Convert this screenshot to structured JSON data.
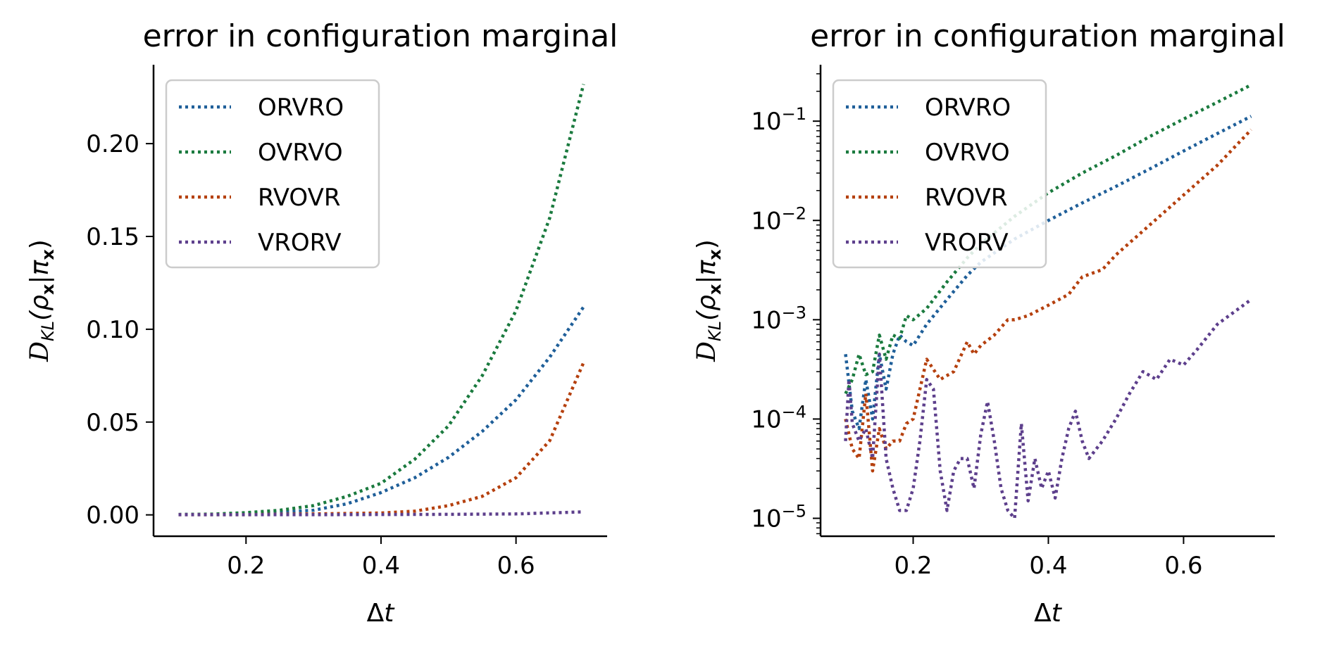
{
  "chart_data": [
    {
      "type": "line",
      "title": "error in configuration marginal",
      "xlabel": "Δt",
      "ylabel": "D_KL(ρ_x|π_x)",
      "xscale": "linear",
      "yscale": "linear",
      "xlim": [
        0.063,
        0.735
      ],
      "ylim": [
        -0.0115,
        0.2425
      ],
      "xticks": [
        0.2,
        0.4,
        0.6
      ],
      "xtick_labels": [
        "0.2",
        "0.4",
        "0.6"
      ],
      "yticks": [
        0.0,
        0.05,
        0.1,
        0.15,
        0.2
      ],
      "ytick_labels": [
        "0.00",
        "0.05",
        "0.10",
        "0.15",
        "0.20"
      ],
      "grid": false,
      "legend_position": "top-left",
      "line_style": "dotted",
      "series": [
        {
          "name": "ORVRO",
          "color": "#1f5f99",
          "x": [
            0.1,
            0.15,
            0.2,
            0.25,
            0.3,
            0.35,
            0.4,
            0.45,
            0.5,
            0.55,
            0.6,
            0.65,
            0.7
          ],
          "y": [
            0.0002,
            0.0003,
            0.0008,
            0.0015,
            0.0025,
            0.006,
            0.012,
            0.02,
            0.031,
            0.045,
            0.062,
            0.085,
            0.112
          ]
        },
        {
          "name": "OVRVO",
          "color": "#1a7a3e",
          "x": [
            0.1,
            0.15,
            0.2,
            0.25,
            0.3,
            0.35,
            0.4,
            0.45,
            0.5,
            0.55,
            0.6,
            0.65,
            0.7
          ],
          "y": [
            0.0002,
            0.0004,
            0.0012,
            0.0025,
            0.005,
            0.01,
            0.017,
            0.03,
            0.048,
            0.075,
            0.11,
            0.16,
            0.232
          ]
        },
        {
          "name": "RVOVR",
          "color": "#b5400e",
          "x": [
            0.1,
            0.2,
            0.3,
            0.4,
            0.45,
            0.5,
            0.55,
            0.6,
            0.65,
            0.7
          ],
          "y": [
            0.0001,
            0.0001,
            0.0005,
            0.001,
            0.002,
            0.005,
            0.01,
            0.02,
            0.04,
            0.082
          ]
        },
        {
          "name": "VRORV",
          "color": "#5d3f8c",
          "x": [
            0.1,
            0.3,
            0.5,
            0.6,
            0.7
          ],
          "y": [
            0.0001,
            0.0001,
            0.0003,
            0.0005,
            0.0016
          ]
        }
      ]
    },
    {
      "type": "line",
      "title": "error in configuration marginal",
      "xlabel": "Δt",
      "ylabel": "D_KL(ρ_x|π_x)",
      "xscale": "linear",
      "yscale": "log",
      "xlim": [
        0.063,
        0.735
      ],
      "ylim": [
        6.6e-06,
        0.37
      ],
      "xticks": [
        0.2,
        0.4,
        0.6
      ],
      "xtick_labels": [
        "0.2",
        "0.4",
        "0.6"
      ],
      "yticks": [
        1e-05,
        0.0001,
        0.001,
        0.01,
        0.1
      ],
      "ytick_labels": [
        {
          "base": "10",
          "exp": "−5"
        },
        {
          "base": "10",
          "exp": "−4"
        },
        {
          "base": "10",
          "exp": "−3"
        },
        {
          "base": "10",
          "exp": "−2"
        },
        {
          "base": "10",
          "exp": "−1"
        }
      ],
      "grid": false,
      "legend_position": "top-left",
      "line_style": "dotted",
      "series": [
        {
          "name": "ORVRO",
          "color": "#1f5f99",
          "x": [
            0.1,
            0.11,
            0.12,
            0.13,
            0.14,
            0.15,
            0.16,
            0.17,
            0.18,
            0.19,
            0.2,
            0.22,
            0.25,
            0.28,
            0.3,
            0.35,
            0.4,
            0.45,
            0.5,
            0.55,
            0.6,
            0.65,
            0.7
          ],
          "y": [
            0.00045,
            0.00012,
            8e-05,
            0.00025,
            0.0001,
            0.00045,
            0.0002,
            0.00045,
            0.0007,
            0.0006,
            0.00055,
            0.0009,
            0.0016,
            0.0028,
            0.0038,
            0.0065,
            0.01,
            0.015,
            0.022,
            0.033,
            0.05,
            0.075,
            0.112
          ]
        },
        {
          "name": "OVRVO",
          "color": "#1a7a3e",
          "x": [
            0.1,
            0.11,
            0.12,
            0.13,
            0.14,
            0.15,
            0.16,
            0.17,
            0.18,
            0.19,
            0.2,
            0.22,
            0.25,
            0.28,
            0.3,
            0.35,
            0.4,
            0.45,
            0.5,
            0.55,
            0.6,
            0.65,
            0.7
          ],
          "y": [
            0.00018,
            0.00025,
            0.00045,
            0.00028,
            0.0003,
            0.0007,
            0.0004,
            0.0007,
            0.00065,
            0.0011,
            0.001,
            0.0013,
            0.0024,
            0.0042,
            0.0058,
            0.011,
            0.019,
            0.03,
            0.045,
            0.07,
            0.105,
            0.155,
            0.232
          ]
        },
        {
          "name": "RVOVR",
          "color": "#b5400e",
          "x": [
            0.1,
            0.11,
            0.12,
            0.13,
            0.14,
            0.15,
            0.16,
            0.17,
            0.18,
            0.19,
            0.2,
            0.21,
            0.22,
            0.24,
            0.26,
            0.28,
            0.29,
            0.3,
            0.32,
            0.34,
            0.35,
            0.37,
            0.4,
            0.43,
            0.45,
            0.48,
            0.5,
            0.55,
            0.6,
            0.65,
            0.7
          ],
          "y": [
            0.0001,
            5e-05,
            4e-05,
            0.00018,
            3e-05,
            8e-05,
            5e-05,
            6e-05,
            6e-05,
            9e-05,
            0.0001,
            0.0002,
            0.0004,
            0.00025,
            0.0003,
            0.0006,
            0.00045,
            0.00055,
            0.0007,
            0.001,
            0.001,
            0.0011,
            0.0014,
            0.0018,
            0.0027,
            0.0032,
            0.0045,
            0.009,
            0.018,
            0.036,
            0.082
          ]
        },
        {
          "name": "VRORV",
          "color": "#5d3f8c",
          "x": [
            0.1,
            0.105,
            0.11,
            0.12,
            0.13,
            0.14,
            0.15,
            0.16,
            0.17,
            0.18,
            0.19,
            0.2,
            0.21,
            0.22,
            0.23,
            0.24,
            0.25,
            0.26,
            0.27,
            0.28,
            0.29,
            0.3,
            0.31,
            0.32,
            0.33,
            0.34,
            0.35,
            0.36,
            0.37,
            0.38,
            0.39,
            0.4,
            0.41,
            0.42,
            0.43,
            0.44,
            0.45,
            0.46,
            0.48,
            0.5,
            0.52,
            0.54,
            0.56,
            0.58,
            0.6,
            0.62,
            0.65,
            0.7
          ],
          "y": [
            6e-05,
            0.00025,
            9e-05,
            6e-05,
            8e-05,
            4e-05,
            0.00045,
            4e-05,
            2e-05,
            1.2e-05,
            1.2e-05,
            2e-05,
            6e-05,
            0.00025,
            0.0002,
            3e-05,
            1.2e-05,
            3e-05,
            4e-05,
            4e-05,
            2e-05,
            7e-05,
            0.00015,
            6e-05,
            2e-05,
            1.2e-05,
            1e-05,
            9e-05,
            1.5e-05,
            4e-05,
            2e-05,
            3e-05,
            1.6e-05,
            4e-05,
            8e-05,
            0.00012,
            6e-05,
            4e-05,
            6e-05,
            0.0001,
            0.00018,
            0.0003,
            0.00025,
            0.0004,
            0.00035,
            0.0005,
            0.0009,
            0.0016
          ]
        }
      ]
    }
  ]
}
